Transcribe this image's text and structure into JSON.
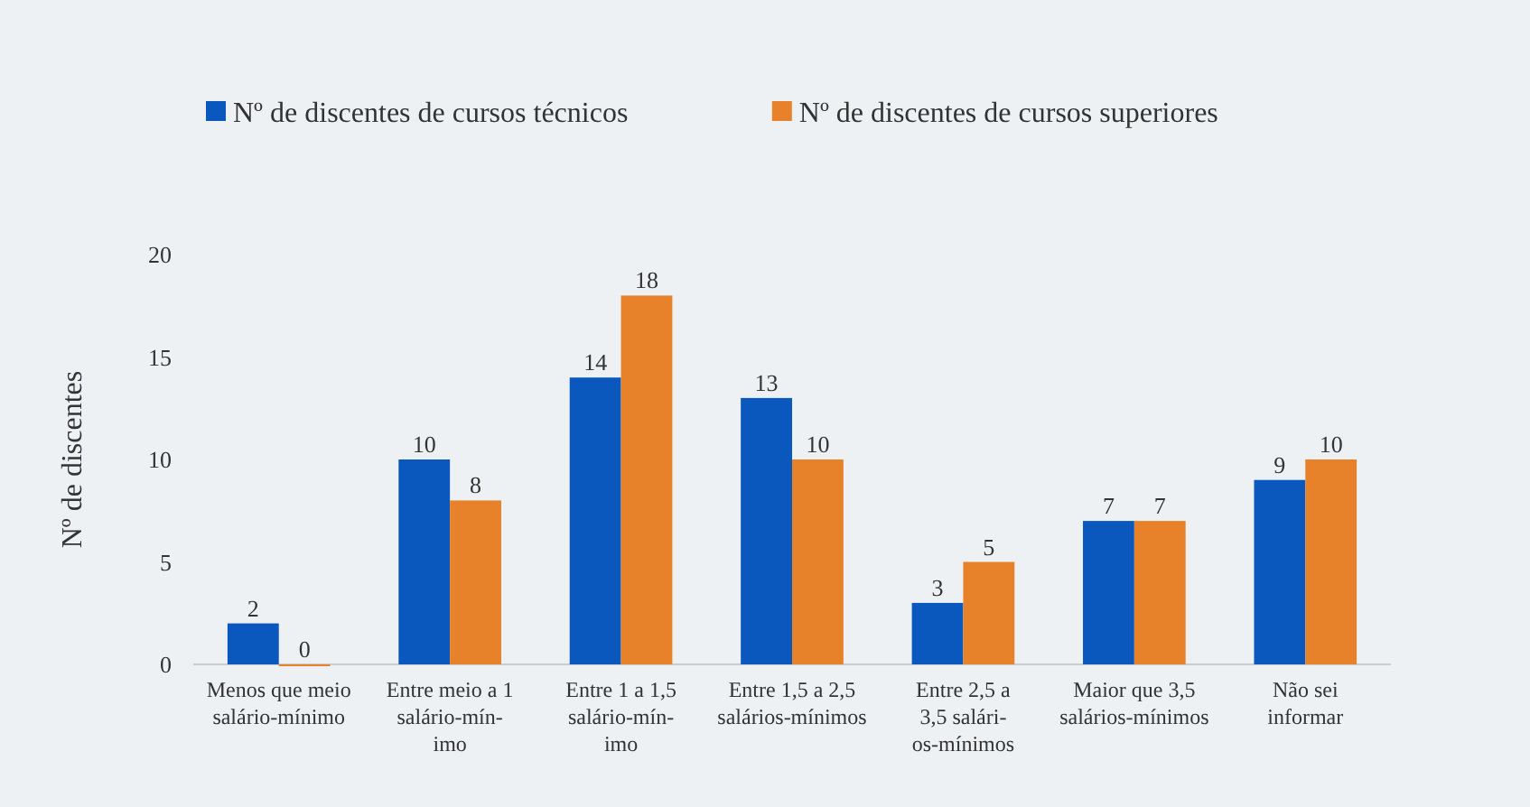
{
  "chart_data": {
    "type": "bar",
    "ylabel": "Nº de discentes",
    "categories": [
      "Menos que meio\nsalário-mínimo",
      "Entre meio a 1\nsalário-mín-\nimo",
      "Entre 1 a 1,5\nsalário-mín-\nimo",
      "Entre 1,5 a 2,5\nsalários-mínimos",
      "Entre 2,5 a\n3,5 salári-\nos-mínimos",
      "Maior que 3,5\nsalários-mínimos",
      "Não sei\ninformar"
    ],
    "series": [
      {
        "name": "Nº de discentes de cursos técnicos",
        "color": "#0a58bd",
        "values": [
          2,
          10,
          14,
          13,
          3,
          7,
          9
        ]
      },
      {
        "name": "Nº de discentes de cursos superiores",
        "color": "#e8822a",
        "values": [
          0,
          8,
          18,
          10,
          5,
          7,
          10
        ]
      }
    ],
    "ylim": [
      0,
      20
    ],
    "yticks": [
      0,
      5,
      10,
      15,
      20
    ],
    "grid": false,
    "legend": "top",
    "data_labels": true
  }
}
